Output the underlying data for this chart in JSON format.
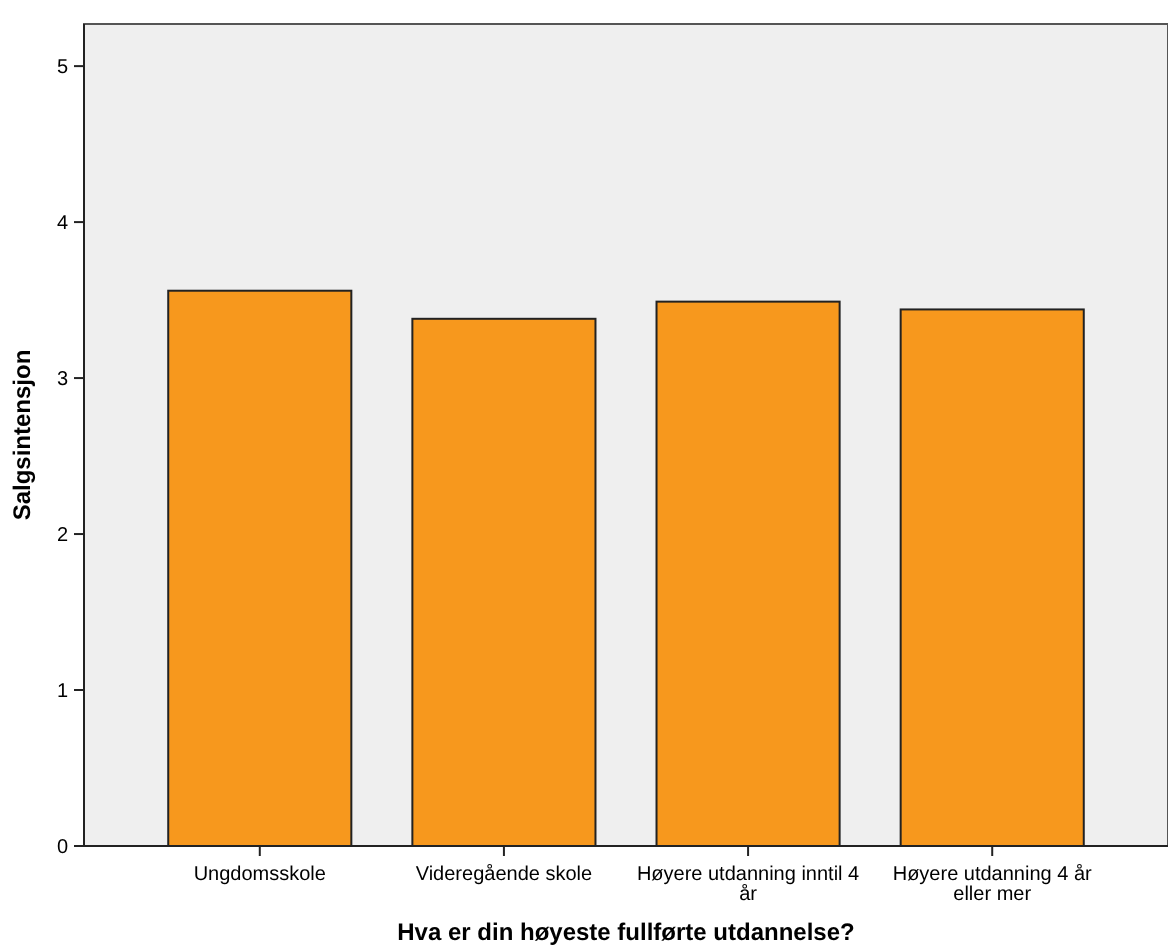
{
  "chart_data": {
    "type": "bar",
    "xlabel": "Hva er din høyeste fullførte utdannelse?",
    "ylabel": "Salgsintensjon",
    "categories": [
      "Ungdomsskole",
      "Videregående skole",
      "Høyere utdanning inntil 4 år",
      "Høyere utdanning 4 år eller mer"
    ],
    "values": [
      3.56,
      3.38,
      3.49,
      3.44
    ],
    "color": "#f7981d",
    "ylim": [
      0,
      5.27
    ],
    "yticks": [
      0,
      1,
      2,
      3,
      4,
      5
    ],
    "grid": false
  }
}
